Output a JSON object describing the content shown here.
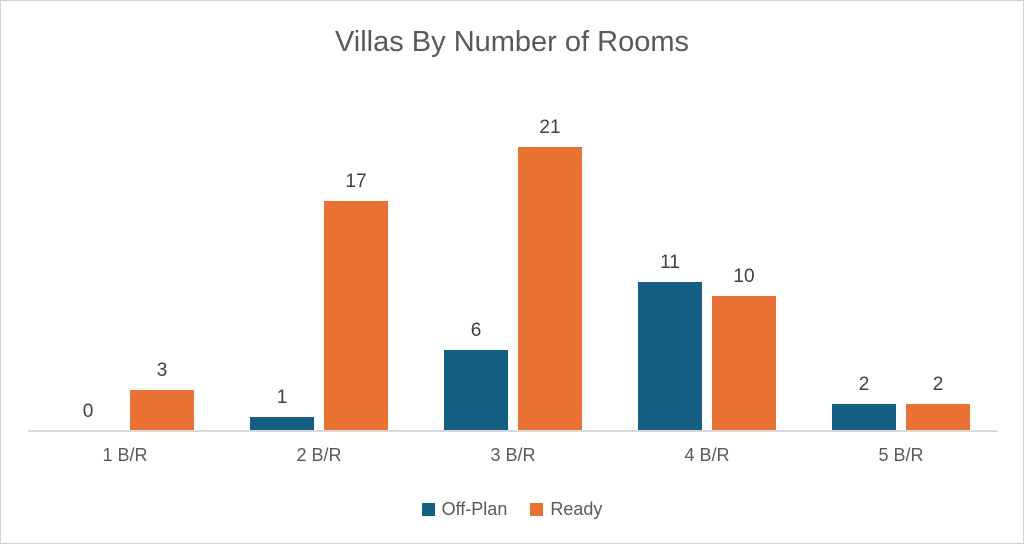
{
  "chart_data": {
    "type": "bar",
    "title": "Villas By Number of Rooms",
    "categories": [
      "1 B/R",
      "2 B/R",
      "3 B/R",
      "4 B/R",
      "5 B/R"
    ],
    "series": [
      {
        "name": "Off-Plan",
        "color": "#156082",
        "values": [
          0,
          1,
          6,
          11,
          2
        ]
      },
      {
        "name": "Ready",
        "color": "#E97132",
        "values": [
          3,
          17,
          21,
          10,
          2
        ]
      }
    ],
    "ylim": [
      0,
      22
    ],
    "y_axis_visible": false,
    "grid": false,
    "data_labels": true,
    "legend_position": "bottom"
  },
  "palette": {
    "off_plan": "#156082",
    "ready": "#E97132",
    "title_text": "#595959",
    "data_label_text": "#404040",
    "axis_label_text": "#595959",
    "axis_line": "#D9D9D9",
    "canvas_border": "#D2D2D2",
    "background": "#FFFFFF"
  }
}
